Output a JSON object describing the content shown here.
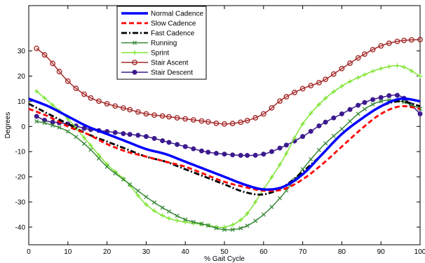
{
  "chart_data": {
    "type": "line",
    "xlabel": "% Gait Cycle",
    "ylabel": "Degrees",
    "xlim": [
      0,
      100
    ],
    "ylim": [
      -47,
      48
    ],
    "xticks": [
      0,
      10,
      20,
      30,
      40,
      50,
      60,
      70,
      80,
      90,
      100
    ],
    "yticks": [
      -40,
      -30,
      -20,
      -10,
      0,
      10,
      20,
      30
    ],
    "grid": false,
    "legend_position": "top-center",
    "series": [
      {
        "name": "Normal Cadence",
        "color": "#0000ff",
        "style": "solid-thick",
        "marker": "none",
        "points": [
          [
            0,
            11
          ],
          [
            5,
            8
          ],
          [
            10,
            4
          ],
          [
            15,
            0
          ],
          [
            20,
            -3
          ],
          [
            25,
            -6
          ],
          [
            30,
            -9
          ],
          [
            35,
            -11
          ],
          [
            40,
            -14
          ],
          [
            45,
            -17
          ],
          [
            50,
            -20
          ],
          [
            55,
            -23
          ],
          [
            60,
            -25
          ],
          [
            65,
            -24
          ],
          [
            70,
            -19
          ],
          [
            75,
            -11
          ],
          [
            80,
            -3
          ],
          [
            85,
            3
          ],
          [
            90,
            8
          ],
          [
            95,
            11
          ],
          [
            100,
            10
          ]
        ]
      },
      {
        "name": "Slow Cadence",
        "color": "#ff0000",
        "style": "dashed",
        "marker": "none",
        "points": [
          [
            0,
            7
          ],
          [
            5,
            4
          ],
          [
            10,
            0
          ],
          [
            15,
            -3
          ],
          [
            20,
            -7
          ],
          [
            25,
            -10
          ],
          [
            30,
            -12
          ],
          [
            35,
            -14
          ],
          [
            40,
            -16
          ],
          [
            45,
            -19
          ],
          [
            50,
            -22
          ],
          [
            55,
            -24
          ],
          [
            60,
            -25.5
          ],
          [
            65,
            -25
          ],
          [
            70,
            -21
          ],
          [
            75,
            -15
          ],
          [
            80,
            -8
          ],
          [
            85,
            -1
          ],
          [
            90,
            5
          ],
          [
            95,
            8
          ],
          [
            100,
            7
          ]
        ]
      },
      {
        "name": "Fast Cadence",
        "color": "#000000",
        "style": "dash-dot",
        "marker": "none",
        "points": [
          [
            0,
            9
          ],
          [
            5,
            5
          ],
          [
            10,
            1
          ],
          [
            15,
            -3
          ],
          [
            20,
            -6
          ],
          [
            25,
            -9
          ],
          [
            30,
            -12
          ],
          [
            35,
            -14
          ],
          [
            40,
            -17
          ],
          [
            45,
            -20
          ],
          [
            50,
            -23
          ],
          [
            55,
            -26
          ],
          [
            60,
            -27
          ],
          [
            65,
            -24
          ],
          [
            70,
            -18
          ],
          [
            75,
            -11
          ],
          [
            80,
            -3
          ],
          [
            85,
            3
          ],
          [
            90,
            8
          ],
          [
            95,
            10
          ],
          [
            100,
            8
          ]
        ]
      },
      {
        "name": "Running",
        "color": "#3b8a3b",
        "style": "solid",
        "marker": "x",
        "points": [
          [
            2,
            2
          ],
          [
            5,
            1
          ],
          [
            10,
            -2
          ],
          [
            15,
            -8
          ],
          [
            20,
            -16
          ],
          [
            25,
            -22
          ],
          [
            30,
            -28
          ],
          [
            35,
            -33
          ],
          [
            40,
            -37
          ],
          [
            45,
            -39
          ],
          [
            50,
            -41
          ],
          [
            55,
            -40
          ],
          [
            60,
            -35
          ],
          [
            65,
            -27
          ],
          [
            70,
            -17
          ],
          [
            75,
            -8
          ],
          [
            80,
            -1
          ],
          [
            85,
            6
          ],
          [
            90,
            10
          ],
          [
            95,
            10
          ],
          [
            100,
            7
          ]
        ]
      },
      {
        "name": "Sprint",
        "color": "#7fe533",
        "style": "solid",
        "marker": "plus",
        "points": [
          [
            2,
            14
          ],
          [
            5,
            10
          ],
          [
            10,
            3
          ],
          [
            15,
            -6
          ],
          [
            20,
            -15
          ],
          [
            25,
            -22
          ],
          [
            30,
            -31
          ],
          [
            35,
            -36
          ],
          [
            40,
            -38
          ],
          [
            45,
            -39
          ],
          [
            50,
            -40
          ],
          [
            55,
            -36
          ],
          [
            60,
            -25
          ],
          [
            65,
            -13
          ],
          [
            70,
            1
          ],
          [
            75,
            10
          ],
          [
            80,
            16
          ],
          [
            85,
            20
          ],
          [
            90,
            23
          ],
          [
            95,
            24
          ],
          [
            100,
            20
          ]
        ]
      },
      {
        "name": "Stair Ascent",
        "color": "#a52a2a",
        "style": "solid",
        "marker": "circle-open",
        "points": [
          [
            2,
            31
          ],
          [
            5,
            27
          ],
          [
            10,
            18
          ],
          [
            15,
            12
          ],
          [
            20,
            9
          ],
          [
            25,
            7
          ],
          [
            30,
            5
          ],
          [
            35,
            4
          ],
          [
            40,
            3
          ],
          [
            45,
            2
          ],
          [
            50,
            1
          ],
          [
            55,
            2
          ],
          [
            60,
            5
          ],
          [
            65,
            11
          ],
          [
            70,
            15
          ],
          [
            75,
            18
          ],
          [
            80,
            23
          ],
          [
            85,
            28
          ],
          [
            90,
            32
          ],
          [
            95,
            34
          ],
          [
            100,
            34.5
          ]
        ]
      },
      {
        "name": "Stair Descent",
        "color": "#3c1a8e",
        "style": "solid",
        "marker": "circle-filled",
        "points": [
          [
            2,
            4
          ],
          [
            5,
            2
          ],
          [
            10,
            1
          ],
          [
            15,
            -1
          ],
          [
            20,
            -2
          ],
          [
            25,
            -3
          ],
          [
            30,
            -4
          ],
          [
            35,
            -6
          ],
          [
            40,
            -8
          ],
          [
            45,
            -10
          ],
          [
            50,
            -11
          ],
          [
            55,
            -11.5
          ],
          [
            60,
            -11
          ],
          [
            65,
            -8
          ],
          [
            70,
            -4
          ],
          [
            75,
            1
          ],
          [
            80,
            5
          ],
          [
            85,
            9
          ],
          [
            90,
            11.5
          ],
          [
            95,
            12
          ],
          [
            100,
            5
          ]
        ]
      }
    ]
  }
}
